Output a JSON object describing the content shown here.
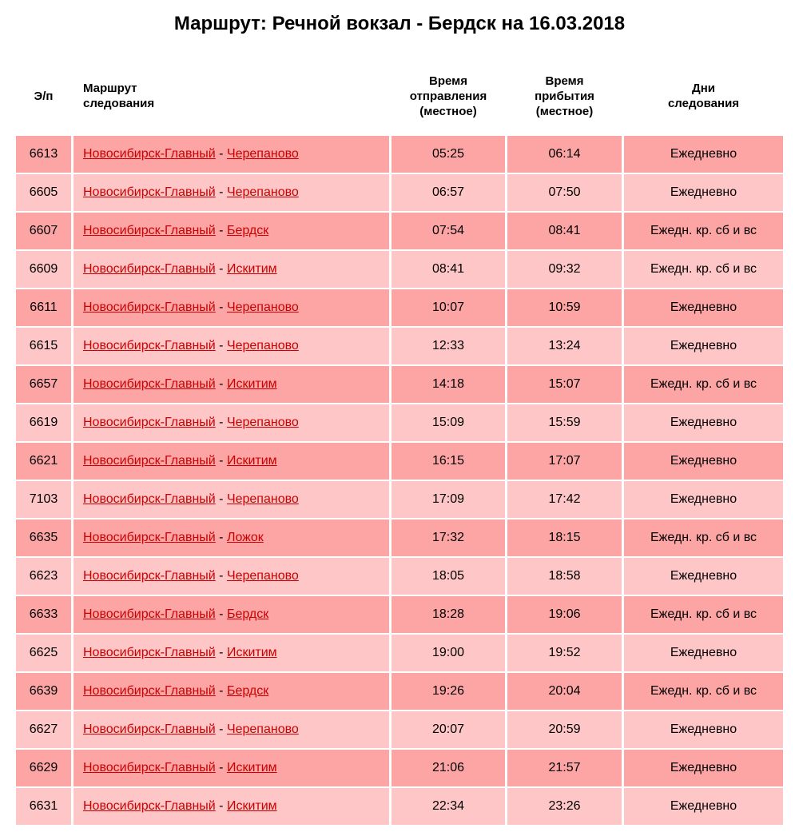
{
  "title": "Маршрут: Речной вокзал - Бердск на 16.03.2018",
  "headers": {
    "num": "Э/п",
    "route": "Маршрут следования",
    "dep": "Время отправления (местное)",
    "arr": "Время прибытия (местное)",
    "days": "Дни следования"
  },
  "colors": {
    "row_dark": "#fda5a5",
    "row_light": "#fec6c6",
    "link": "#cc0000"
  },
  "rows": [
    {
      "num": "6613",
      "from": "Новосибирск-Главный",
      "to": "Черепаново",
      "dep": "05:25",
      "arr": "06:14",
      "days": "Ежедневно"
    },
    {
      "num": "6605",
      "from": "Новосибирск-Главный",
      "to": "Черепаново",
      "dep": "06:57",
      "arr": "07:50",
      "days": "Ежедневно"
    },
    {
      "num": "6607",
      "from": "Новосибирск-Главный",
      "to": "Бердск",
      "dep": "07:54",
      "arr": "08:41",
      "days": "Ежедн. кр. сб и вс"
    },
    {
      "num": "6609",
      "from": "Новосибирск-Главный",
      "to": "Искитим",
      "dep": "08:41",
      "arr": "09:32",
      "days": "Ежедн. кр. сб и вс"
    },
    {
      "num": "6611",
      "from": "Новосибирск-Главный",
      "to": "Черепаново",
      "dep": "10:07",
      "arr": "10:59",
      "days": "Ежедневно"
    },
    {
      "num": "6615",
      "from": "Новосибирск-Главный",
      "to": "Черепаново",
      "dep": "12:33",
      "arr": "13:24",
      "days": "Ежедневно"
    },
    {
      "num": "6657",
      "from": "Новосибирск-Главный",
      "to": "Искитим",
      "dep": "14:18",
      "arr": "15:07",
      "days": "Ежедн. кр. сб и вс"
    },
    {
      "num": "6619",
      "from": "Новосибирск-Главный",
      "to": "Черепаново",
      "dep": "15:09",
      "arr": "15:59",
      "days": "Ежедневно"
    },
    {
      "num": "6621",
      "from": "Новосибирск-Главный",
      "to": "Искитим",
      "dep": "16:15",
      "arr": "17:07",
      "days": "Ежедневно"
    },
    {
      "num": "7103",
      "from": "Новосибирск-Главный",
      "to": "Черепаново",
      "dep": "17:09",
      "arr": "17:42",
      "days": "Ежедневно"
    },
    {
      "num": "6635",
      "from": "Новосибирск-Главный",
      "to": "Ложок",
      "dep": "17:32",
      "arr": "18:15",
      "days": "Ежедн. кр. сб и вс"
    },
    {
      "num": "6623",
      "from": "Новосибирск-Главный",
      "to": "Черепаново",
      "dep": "18:05",
      "arr": "18:58",
      "days": "Ежедневно"
    },
    {
      "num": "6633",
      "from": "Новосибирск-Главный",
      "to": "Бердск",
      "dep": "18:28",
      "arr": "19:06",
      "days": "Ежедн. кр. сб и вс"
    },
    {
      "num": "6625",
      "from": "Новосибирск-Главный",
      "to": "Искитим",
      "dep": "19:00",
      "arr": "19:52",
      "days": "Ежедневно"
    },
    {
      "num": "6639",
      "from": "Новосибирск-Главный",
      "to": "Бердск",
      "dep": "19:26",
      "arr": "20:04",
      "days": "Ежедн. кр. сб и вс"
    },
    {
      "num": "6627",
      "from": "Новосибирск-Главный",
      "to": "Черепаново",
      "dep": "20:07",
      "arr": "20:59",
      "days": "Ежедневно"
    },
    {
      "num": "6629",
      "from": "Новосибирск-Главный",
      "to": "Искитим",
      "dep": "21:06",
      "arr": "21:57",
      "days": "Ежедневно"
    },
    {
      "num": "6631",
      "from": "Новосибирск-Главный",
      "to": "Искитим",
      "dep": "22:34",
      "arr": "23:26",
      "days": "Ежедневно"
    }
  ]
}
